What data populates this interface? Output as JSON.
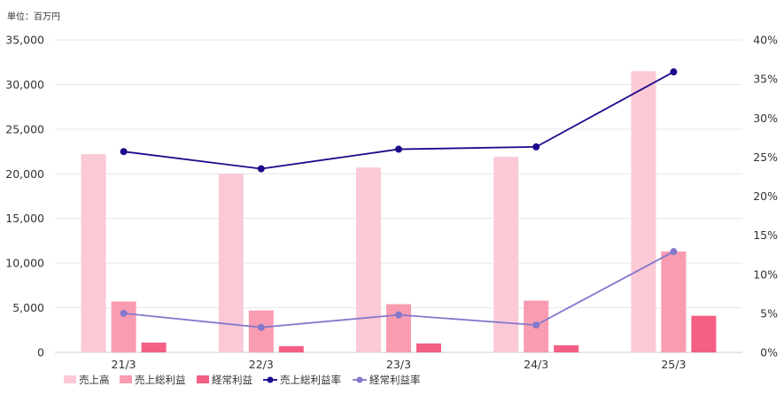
{
  "chart_data": {
    "type": "bar+line",
    "unit_label": "単位：百万円",
    "categories": [
      "21/3",
      "22/3",
      "23/3",
      "24/3",
      "25/3"
    ],
    "y_left": {
      "min": 0,
      "max": 35000,
      "step": 5000,
      "tick_labels": [
        "0",
        "5,000",
        "10,000",
        "15,000",
        "20,000",
        "25,000",
        "30,000",
        "35,000"
      ]
    },
    "y_right": {
      "min": 0,
      "max": 40,
      "step": 5,
      "tick_labels": [
        "0%",
        "5%",
        "10%",
        "15%",
        "20%",
        "25%",
        "30%",
        "35%",
        "40%"
      ]
    },
    "grid": true,
    "legend_position": "bottom-left",
    "bar_series": [
      {
        "name": "売上高",
        "color": "#fcc9d6",
        "values": [
          22200,
          20000,
          20700,
          21900,
          31500
        ]
      },
      {
        "name": "売上総利益",
        "color": "#f99cb1",
        "values": [
          5700,
          4700,
          5400,
          5800,
          11300
        ]
      },
      {
        "name": "経常利益",
        "color": "#f45f84",
        "values": [
          1100,
          700,
          1000,
          800,
          4100
        ]
      }
    ],
    "line_series": [
      {
        "name": "売上総利益率",
        "color": "#1a0a8c",
        "axis": "right",
        "values": [
          25.7,
          23.5,
          26.0,
          26.3,
          35.9
        ]
      },
      {
        "name": "経常利益率",
        "color": "#8478cc",
        "axis": "right",
        "values": [
          5.0,
          3.2,
          4.8,
          3.5,
          12.9
        ]
      }
    ]
  }
}
